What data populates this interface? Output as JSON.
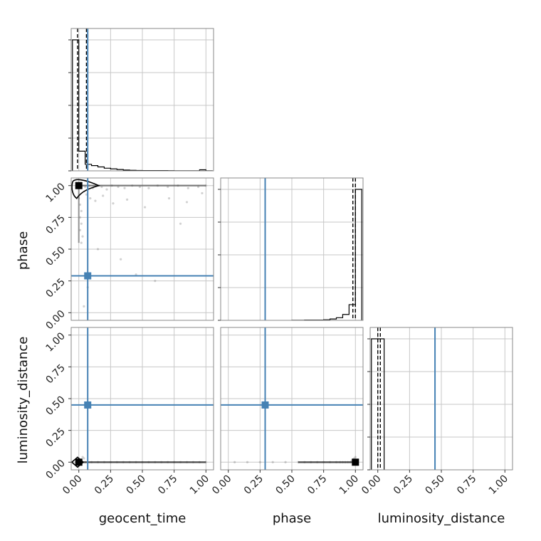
{
  "chart_data": {
    "type": "corner",
    "parameters": [
      "geocent_time",
      "phase",
      "luminosity_distance"
    ],
    "tick_values": [
      0.0,
      0.25,
      0.5,
      0.75,
      1.0
    ],
    "tick_labels": [
      "0.00",
      "0.25",
      "0.50",
      "0.75",
      "1.00"
    ],
    "axis_range": [
      -0.06,
      1.06
    ],
    "grid": true,
    "colors": {
      "truth": "#4682b4",
      "hist": "#000000",
      "points": "#7f7f7f",
      "frame": "#8a8a8a",
      "grid": "#c7c7c7"
    },
    "truths": {
      "geocent_time": 0.07,
      "phase": 0.29,
      "luminosity_distance": 0.45
    },
    "quantiles": {
      "geocent_time": [
        -0.01,
        0.06
      ],
      "phase": [
        0.98,
        1.0
      ],
      "luminosity_distance": [
        0.0,
        0.02
      ]
    },
    "histograms": {
      "geocent_time": {
        "edges": [
          -0.05,
          0.0,
          0.05,
          0.1,
          0.15,
          0.2,
          0.25,
          0.3,
          0.35,
          0.4,
          0.45,
          0.5,
          0.55,
          0.6,
          0.65,
          0.7,
          0.75,
          0.8,
          0.85,
          0.9,
          0.95,
          1.0,
          1.05
        ],
        "heights": [
          1.0,
          0.15,
          0.05,
          0.04,
          0.03,
          0.02,
          0.015,
          0.01,
          0.006,
          0.004,
          0.003,
          0.002,
          0.002,
          0.002,
          0.002,
          0.0015,
          0.001,
          0.001,
          0.001,
          0.001,
          0.008,
          0.001
        ]
      },
      "phase": {
        "edges": [
          0.5,
          0.55,
          0.6,
          0.65,
          0.7,
          0.75,
          0.8,
          0.85,
          0.9,
          0.95,
          1.0,
          1.05
        ],
        "heights": [
          0.001,
          0.001,
          0.002,
          0.002,
          0.002,
          0.004,
          0.01,
          0.02,
          0.045,
          0.12,
          1.0
        ]
      },
      "luminosity_distance": {
        "edges": [
          -0.05,
          0.0,
          0.05
        ],
        "heights": [
          1.0,
          1.0
        ]
      }
    },
    "scatter": {
      "phase_vs_geocent_time": {
        "x": [
          0.02,
          0.05,
          0.08,
          0.11,
          0.14,
          0.18,
          0.22,
          0.26,
          0.31,
          0.36,
          0.42,
          0.48,
          0.55,
          0.62,
          0.7,
          0.78,
          0.86,
          0.94,
          1.0,
          0.01,
          0.01,
          0.01,
          0.02,
          0.02,
          0.02,
          0.03,
          0.0,
          0.06,
          0.09,
          0.13,
          0.19,
          0.27,
          0.38,
          0.52,
          0.71,
          0.85,
          0.97,
          0.15,
          0.33,
          0.45,
          0.6,
          0.8,
          0.07,
          0.04
        ],
        "y": [
          1.0,
          0.99,
          1.0,
          0.98,
          1.0,
          0.99,
          0.97,
          1.0,
          0.99,
          0.98,
          1.0,
          0.99,
          0.98,
          1.0,
          0.99,
          1.0,
          0.98,
          0.99,
          1.0,
          0.85,
          0.75,
          0.65,
          0.8,
          0.7,
          0.55,
          0.6,
          0.9,
          0.93,
          0.9,
          0.88,
          0.92,
          0.86,
          0.89,
          0.83,
          0.9,
          0.87,
          0.94,
          0.5,
          0.42,
          0.3,
          0.25,
          0.7,
          0.2,
          0.05
        ]
      },
      "luminosity_distance_vs_geocent_time": {
        "x": [
          0.0,
          0.05,
          0.1,
          0.15,
          0.2,
          0.25,
          0.3,
          0.35,
          0.4,
          0.45,
          0.5,
          0.55,
          0.6,
          0.65,
          0.7,
          0.75,
          0.8,
          0.85,
          0.9,
          0.95,
          1.0,
          0.02,
          0.04,
          0.03
        ],
        "y": [
          0.0,
          0.0,
          0.0,
          0.0,
          0.0,
          0.0,
          0.0,
          0.0,
          0.0,
          0.0,
          0.0,
          0.0,
          0.0,
          0.0,
          0.0,
          0.0,
          0.0,
          0.0,
          0.0,
          0.0,
          0.0,
          0.02,
          0.03,
          0.04
        ]
      },
      "luminosity_distance_vs_phase": {
        "x": [
          0.05,
          0.15,
          0.25,
          0.35,
          0.45,
          0.55,
          0.6,
          0.65,
          0.7,
          0.75,
          0.8,
          0.85,
          0.88,
          0.9,
          0.92,
          0.94,
          0.96,
          0.97,
          0.98,
          0.99,
          1.0
        ],
        "y": [
          0.0,
          0.0,
          0.0,
          0.0,
          0.0,
          0.0,
          0.0,
          0.0,
          0.0,
          0.0,
          0.0,
          0.0,
          0.0,
          0.0,
          0.0,
          0.0,
          0.0,
          0.01,
          0.02,
          0.03,
          0.04
        ]
      }
    },
    "marker_points": {
      "phase_vs_geocent_time": [
        0.0,
        1.0
      ],
      "luminosity_distance_vs_geocent_time": [
        0.0,
        0.0
      ],
      "luminosity_distance_vs_phase": [
        1.0,
        0.0
      ]
    }
  }
}
